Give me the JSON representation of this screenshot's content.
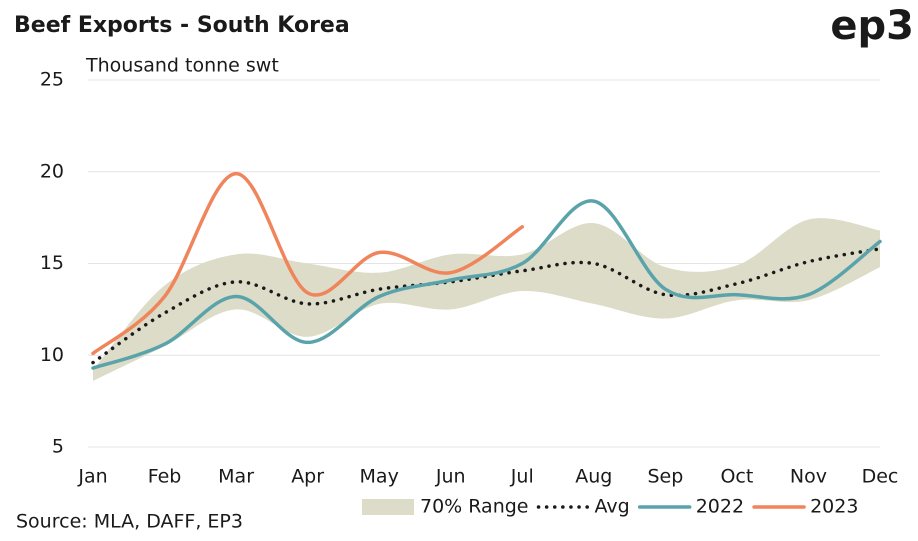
{
  "chart_data": {
    "type": "line",
    "title": "Beef Exports - South Korea",
    "subtitle": "Thousand tonne swt",
    "logo": "ep3",
    "source": "Source: MLA, DAFF, EP3",
    "categories": [
      "Jan",
      "Feb",
      "Mar",
      "Apr",
      "May",
      "Jun",
      "Jul",
      "Aug",
      "Sep",
      "Oct",
      "Nov",
      "Dec"
    ],
    "ylim": [
      5,
      25
    ],
    "yticks": [
      5,
      10,
      15,
      20,
      25
    ],
    "grid": true,
    "legend": "bottom-right",
    "range": {
      "name": "70% Range",
      "color": "#dcdcc8",
      "low": [
        8.6,
        10.5,
        12.5,
        11,
        12.8,
        12.5,
        13.5,
        12.8,
        12,
        13,
        13,
        14.8
      ],
      "high": [
        9.2,
        13.8,
        15.5,
        15,
        14.5,
        15.5,
        15.5,
        17.2,
        14.8,
        14.9,
        17.4,
        16.8
      ]
    },
    "series": [
      {
        "name": "Avg",
        "color": "#1a1a1a",
        "dashed": true,
        "values": [
          9.6,
          12.3,
          14,
          12.8,
          13.6,
          14,
          14.6,
          15,
          13.3,
          13.9,
          15.1,
          15.8
        ]
      },
      {
        "name": "2022",
        "color": "#5ba3aa",
        "values": [
          9.3,
          10.6,
          13.2,
          10.7,
          13.2,
          14.1,
          15,
          18.4,
          13.6,
          13.3,
          13.3,
          16.2
        ]
      },
      {
        "name": "2023",
        "color": "#f0845a",
        "values": [
          10.1,
          13.2,
          19.9,
          13.4,
          15.6,
          14.5,
          17,
          null,
          null,
          null,
          null,
          null
        ]
      }
    ]
  }
}
